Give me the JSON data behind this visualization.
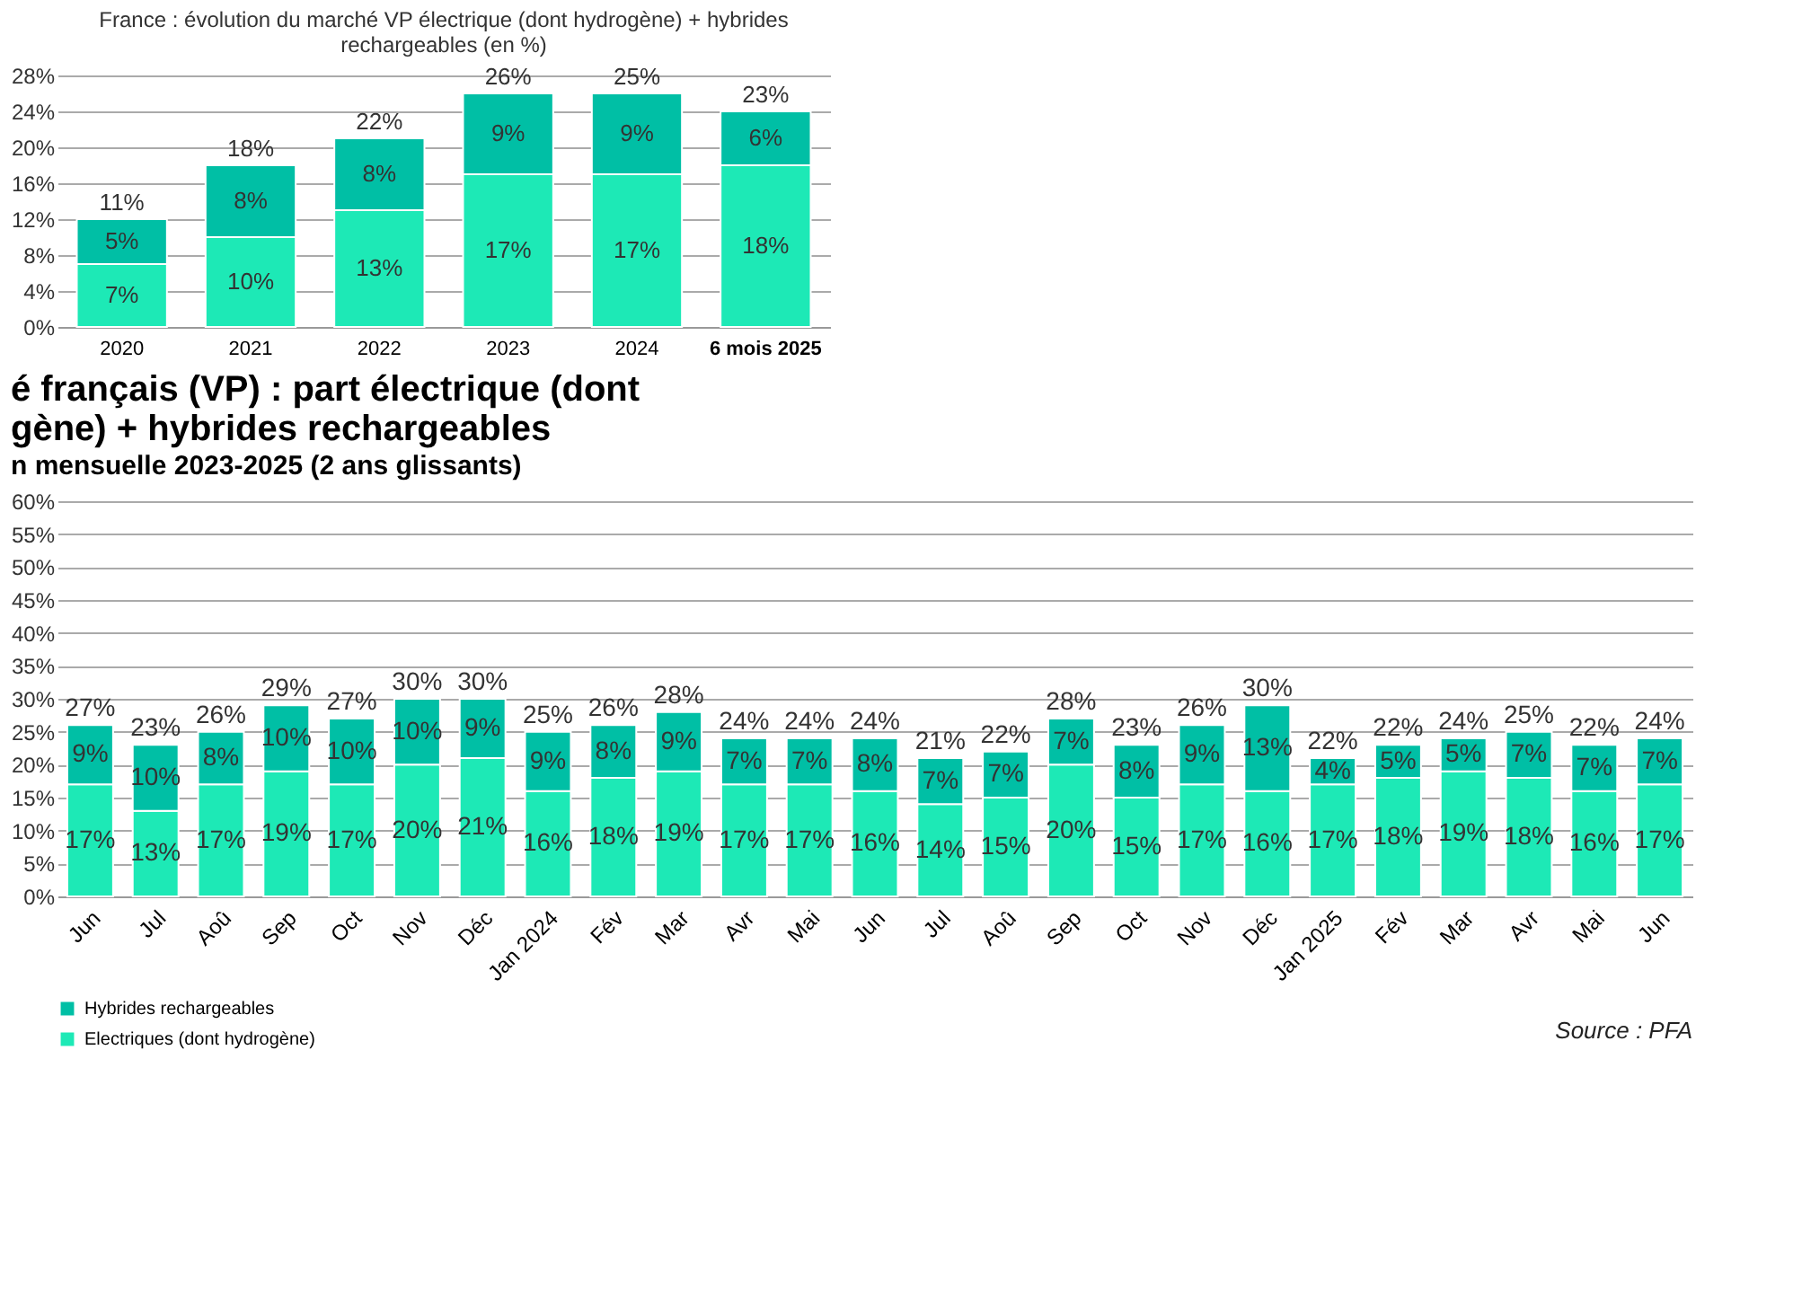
{
  "chart_data": [
    {
      "type": "bar",
      "title": "France : évolution du marché VP électrique (dont hydrogène) + hybrides rechargeables (en %)",
      "categories": [
        "2020",
        "2021",
        "2022",
        "2023",
        "2024",
        "6 mois 2025"
      ],
      "series": [
        {
          "color": "#1de9b6",
          "values": [
            7,
            10,
            13,
            17,
            17,
            18
          ],
          "value_labels": [
            "7%",
            "10%",
            "13%",
            "17%",
            "17%",
            "18%"
          ]
        },
        {
          "color": "#00bfa5",
          "values": [
            5,
            8,
            8,
            9,
            9,
            6
          ],
          "value_labels": [
            "5%",
            "8%",
            "8%",
            "9%",
            "9%",
            "6%"
          ]
        }
      ],
      "stacked": true,
      "totals": [
        "11%",
        "18%",
        "22%",
        "26%",
        "25%",
        "23%"
      ],
      "ylim": [
        0,
        28
      ],
      "yticks": [
        {
          "value": 0,
          "label": "0%"
        },
        {
          "value": 4,
          "label": "4%"
        },
        {
          "value": 8,
          "label": "8%"
        },
        {
          "value": 12,
          "label": "12%"
        },
        {
          "value": 16,
          "label": "16%"
        },
        {
          "value": 20,
          "label": "20%"
        },
        {
          "value": 24,
          "label": "24%"
        },
        {
          "value": 28,
          "label": "28%"
        }
      ],
      "grid": "y"
    },
    {
      "type": "bar",
      "title": [
        "é français (VP) : part électrique (dont",
        "gène) + hybrides rechargeables"
      ],
      "subtitle": "n mensuelle 2023-2025 (2 ans glissants)",
      "categories": [
        "Jun",
        "Jul",
        "Aoû",
        "Sep",
        "Oct",
        "Nov",
        "Déc",
        "Jan 2024",
        "Fév",
        "Mar",
        "Avr",
        "Mai",
        "Jun",
        "Jul",
        "Aoû",
        "Sep",
        "Oct",
        "Nov",
        "Déc",
        "Jan 2025",
        "Fév",
        "Mar",
        "Avr",
        "Mai",
        "Jun"
      ],
      "series": [
        {
          "name": "Electriques (dont hydrogène)",
          "color": "#1de9b6",
          "values": [
            17,
            13,
            17,
            19,
            17,
            20,
            21,
            16,
            18,
            19,
            17,
            17,
            16,
            14,
            15,
            20,
            15,
            17,
            16,
            17,
            18,
            19,
            18,
            16,
            17
          ],
          "value_labels": [
            "17%",
            "13%",
            "17%",
            "19%",
            "17%",
            "20%",
            "21%",
            "16%",
            "18%",
            "19%",
            "17%",
            "17%",
            "16%",
            "14%",
            "15%",
            "20%",
            "15%",
            "17%",
            "16%",
            "17%",
            "18%",
            "19%",
            "18%",
            "16%",
            "17%"
          ]
        },
        {
          "name": "Hybrides rechargeables",
          "color": "#00bfa5",
          "values": [
            9,
            10,
            8,
            10,
            10,
            10,
            9,
            9,
            8,
            9,
            7,
            7,
            8,
            7,
            7,
            7,
            8,
            9,
            13,
            4,
            5,
            5,
            7,
            7,
            7
          ],
          "value_labels": [
            "9%",
            "10%",
            "8%",
            "10%",
            "10%",
            "10%",
            "9%",
            "9%",
            "8%",
            "9%",
            "7%",
            "7%",
            "8%",
            "7%",
            "7%",
            "7%",
            "8%",
            "9%",
            "13%",
            "4%",
            "5%",
            "5%",
            "7%",
            "7%",
            "7%"
          ]
        }
      ],
      "stacked": true,
      "totals": [
        "27%",
        "23%",
        "26%",
        "29%",
        "27%",
        "30%",
        "30%",
        "25%",
        "26%",
        "28%",
        "24%",
        "24%",
        "24%",
        "21%",
        "22%",
        "28%",
        "23%",
        "26%",
        "30%",
        "22%",
        "22%",
        "24%",
        "25%",
        "22%",
        "24%"
      ],
      "ylim": [
        0,
        60
      ],
      "yticks": [
        {
          "value": 0,
          "label": "0%"
        },
        {
          "value": 5,
          "label": "5%"
        },
        {
          "value": 10,
          "label": "10%"
        },
        {
          "value": 15,
          "label": "15%"
        },
        {
          "value": 20,
          "label": "20%"
        },
        {
          "value": 25,
          "label": "25%"
        },
        {
          "value": 30,
          "label": "30%"
        },
        {
          "value": 35,
          "label": "35%"
        },
        {
          "value": 40,
          "label": "40%"
        },
        {
          "value": 45,
          "label": "45%"
        },
        {
          "value": 50,
          "label": "50%"
        },
        {
          "value": 55,
          "label": "55%"
        },
        {
          "value": 60,
          "label": "60%"
        }
      ],
      "grid": "y",
      "legend": "bottom left",
      "annotations": [
        "Source : PFA"
      ]
    }
  ]
}
